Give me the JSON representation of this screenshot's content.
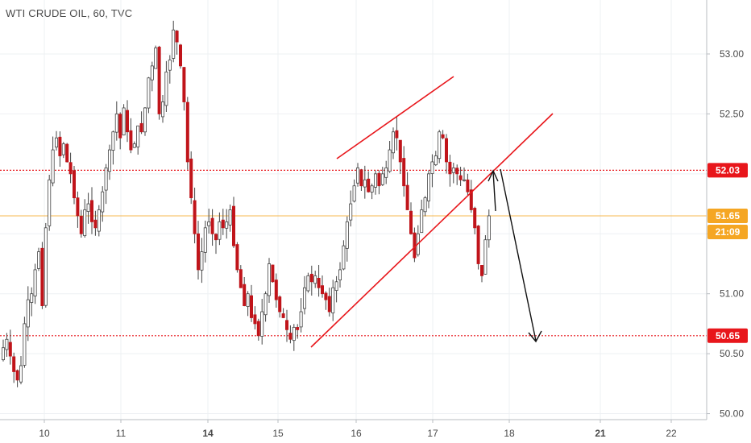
{
  "header": {
    "title": "WTI CRUDE OIL, 60, TVC"
  },
  "colors": {
    "up": "#ffffff",
    "down": "#c0141a",
    "wick": "#444444",
    "level": "#e8161b",
    "current": "#f5a623",
    "timer_bg": "#f5a623",
    "drawing_red": "#e8161b",
    "arrow": "#111111",
    "grid": "#eef0f3",
    "axis": "#b9bcc2"
  },
  "chart_data": {
    "type": "candlestick",
    "title": "WTI CRUDE OIL, 60, TVC",
    "symbol": "WTI CRUDE OIL",
    "interval": "60",
    "source": "TVC",
    "ylim": [
      49.95,
      53.45
    ],
    "y_ticks": [
      "50.00",
      "50.50",
      "51.00",
      "51.50",
      "52.00",
      "52.50",
      "53.00"
    ],
    "x_ticks": [
      {
        "label": "10",
        "bold": false
      },
      {
        "label": "11",
        "bold": false
      },
      {
        "label": "14",
        "bold": true
      },
      {
        "label": "15",
        "bold": false
      },
      {
        "label": "16",
        "bold": false
      },
      {
        "label": "17",
        "bold": false
      },
      {
        "label": "18",
        "bold": false
      },
      {
        "label": "21",
        "bold": true
      },
      {
        "label": "22",
        "bold": false
      }
    ],
    "levels": [
      {
        "price": 52.03,
        "label": "52.03",
        "style": "dotted"
      },
      {
        "price": 50.65,
        "label": "50.65",
        "style": "dotted"
      }
    ],
    "current_price": {
      "price": 51.65,
      "label": "51.65",
      "timer": "21:09"
    },
    "candles_note": "hourly OHLC approximated from chart",
    "closes": [
      50.55,
      50.62,
      50.48,
      50.35,
      50.28,
      50.4,
      50.75,
      50.95,
      51.0,
      51.2,
      51.35,
      50.9,
      51.55,
      51.95,
      52.2,
      52.3,
      52.15,
      52.25,
      52.1,
      52.0,
      51.8,
      51.65,
      51.5,
      51.7,
      51.75,
      51.6,
      51.55,
      51.7,
      51.85,
      52.05,
      52.2,
      52.35,
      52.5,
      52.3,
      52.55,
      52.35,
      52.2,
      52.25,
      52.4,
      52.35,
      52.55,
      52.8,
      52.9,
      53.05,
      52.5,
      52.6,
      52.85,
      52.95,
      53.2,
      53.1,
      52.9,
      52.6,
      52.1,
      51.8,
      51.5,
      51.2,
      51.35,
      51.55,
      51.6,
      51.5,
      51.45,
      51.6,
      51.55,
      51.6,
      51.7,
      51.4,
      51.2,
      51.05,
      50.9,
      51.0,
      50.8,
      50.75,
      50.65,
      50.85,
      51.0,
      51.25,
      51.1,
      50.95,
      50.85,
      50.8,
      50.7,
      50.62,
      50.72,
      50.7,
      50.85,
      51.05,
      51.15,
      51.1,
      51.15,
      51.05,
      51.0,
      50.95,
      50.85,
      51.05,
      51.1,
      51.2,
      51.4,
      51.6,
      51.75,
      51.9,
      52.05,
      51.9,
      51.95,
      51.85,
      51.9,
      52.0,
      51.9,
      52.0,
      52.05,
      52.2,
      52.35,
      52.3,
      52.1,
      51.9,
      51.7,
      51.5,
      51.3,
      51.5,
      51.7,
      51.8,
      52.0,
      52.1,
      52.15,
      52.35,
      52.3,
      52.1,
      52.0,
      52.05,
      52.0,
      51.95,
      51.95,
      51.85,
      51.7,
      51.55,
      51.25,
      51.15,
      51.45,
      51.65
    ]
  }
}
